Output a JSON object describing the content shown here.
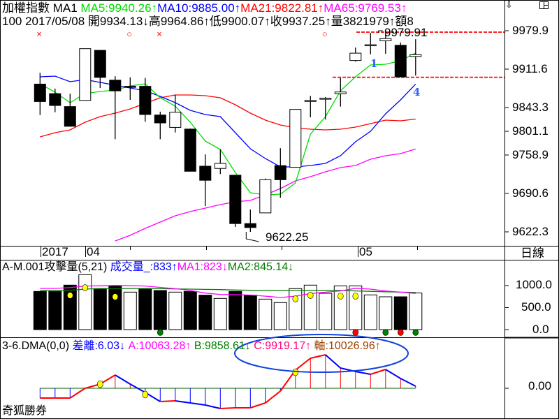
{
  "header": {
    "line1": {
      "name": "加權指數 MA1",
      "ma5": "MA5:9940.26↑",
      "ma10": "MA10:9885.00↑",
      "ma21": "MA21:9822.81↑",
      "ma65": "MA65:9769.53↑"
    },
    "line2": "100 2017/05/08 開9934.13↓高9964.86↑低9900.07↑收9937.25↑量3821979↑額8"
  },
  "colors": {
    "ma5": "#00dd00",
    "ma10": "#0000ff",
    "ma21": "#ff0000",
    "ma65": "#ff00ff",
    "level_line": "#ff2020",
    "vol_ma1": "#ff00ff",
    "vol_ma2": "#008000",
    "dma_up": "#ff0000",
    "dma_down": "#0000ff",
    "annotation": "#3060ff"
  },
  "price_axis": [
    "9979.9",
    "9911.6",
    "9843.3",
    "9801.1",
    "9758.9",
    "9690.6",
    "9622.3"
  ],
  "date_axis": {
    "year": "2017",
    "months": [
      "04",
      "05"
    ],
    "period": "日線"
  },
  "markers": [
    {
      "index": 0,
      "symbol": "×"
    },
    {
      "index": 6,
      "symbol": "○"
    },
    {
      "index": 8,
      "symbol": "×"
    },
    {
      "index": 19,
      "symbol": "○"
    }
  ],
  "price_labels": {
    "high": "9979.91",
    "low": "9622.25"
  },
  "annotations": [
    "1",
    "4"
  ],
  "volume_panel": {
    "title": "A-M.001攻擊量(5,21)",
    "vol": "成交量_:833↑",
    "ma1": "MA1:823↓",
    "ma2": "MA2:845.14↓",
    "axis": [
      "1000.0",
      "500.0",
      "0.0"
    ]
  },
  "dma_panel": {
    "title": "3-6.DMA(0,0)",
    "diff": "差離:6.03↓",
    "a": "A:10063.28↑",
    "b": "B:9858.61↓",
    "c": "C:9919.17↑",
    "axis_val": "軸:10026.96↑",
    "axis": [
      "0.00"
    ]
  },
  "footer_brand": "奇狐勝券",
  "chart_data": {
    "type": "candlestick",
    "price_range": [
      9622.3,
      9979.9
    ],
    "candles": [
      [
        9885,
        9905,
        9830,
        9854
      ],
      [
        9868,
        9877,
        9835,
        9847
      ],
      [
        9845,
        9868,
        9810,
        9810
      ],
      [
        9856,
        9948,
        9856,
        9948
      ],
      [
        9945,
        9945,
        9878,
        9897
      ],
      [
        9892,
        9899,
        9787,
        9873
      ],
      [
        9881,
        9897,
        9857,
        9880
      ],
      [
        9881,
        9896,
        9818,
        9831
      ],
      [
        9830,
        9836,
        9787,
        9816
      ],
      [
        9808,
        9866,
        9799,
        9835
      ],
      [
        9805,
        9806,
        9730,
        9730
      ],
      [
        9739,
        9760,
        9668,
        9714
      ],
      [
        9735,
        9769,
        9725,
        9744
      ],
      [
        9723,
        9723,
        9631,
        9637
      ],
      [
        9637,
        9662,
        9622.25,
        9630
      ],
      [
        9656,
        9717,
        9656,
        9715
      ],
      [
        9740,
        9771,
        9683,
        9715
      ],
      [
        9737,
        9840,
        9737,
        9840
      ],
      [
        9856,
        9864,
        9826,
        9856
      ],
      [
        9859,
        9862,
        9822,
        9860
      ],
      [
        9868,
        9896,
        9845,
        9871
      ],
      [
        9927,
        9950,
        9925,
        9940
      ],
      [
        9955,
        9976,
        9938,
        9955
      ],
      [
        9962,
        9979.91,
        9939,
        9966
      ],
      [
        9954,
        9959,
        9898,
        9898
      ],
      [
        9934.13,
        9964.86,
        9900.07,
        9937.25
      ]
    ],
    "candle_fields": [
      "open",
      "high",
      "low",
      "close"
    ],
    "ma5": [
      9885.5,
      9870.6,
      9852,
      9868.1,
      9871.9,
      9874.4,
      9881.8,
      9885.5,
      9860.7,
      9845.8,
      9817.2,
      9783.7,
      9768.8,
      9727.8,
      9691.8,
      9688.1,
      9689.3,
      9709.2,
      9796.1,
      9827.2,
      9873.1,
      9897.9,
      9919.1,
      9920.3,
      9926.5,
      9940.26
    ],
    "ma10": [
      9897.9,
      9899.2,
      9889.3,
      9893,
      9888,
      9883,
      9878.1,
      9873.1,
      9863.2,
      9852,
      9838.3,
      9830.9,
      9827.2,
      9798.6,
      9770.1,
      9752.7,
      9737.8,
      9737.8,
      9740.3,
      9744,
      9757.6,
      9782.5,
      9801.1,
      9832.1,
      9857,
      9885.0
    ],
    "ma21": [
      9791.2,
      9798.6,
      9803.6,
      9817.2,
      9827.2,
      9833.4,
      9840.8,
      9850.8,
      9860.7,
      9865.7,
      9865.7,
      9864.4,
      9860.7,
      9848.3,
      9833.4,
      9821,
      9812.3,
      9807.3,
      9804.8,
      9803.6,
      9804.8,
      9808.5,
      9814.8,
      9821,
      9819.7,
      9822.81
    ],
    "ma65": [
      null,
      null,
      null,
      null,
      null,
      9606.2,
      9616.1,
      9628.5,
      9639.7,
      9650.9,
      9658.3,
      9664.5,
      9670.7,
      9675.7,
      9678.2,
      9688.1,
      9699.3,
      9712.9,
      9720.4,
      9729.1,
      9736.5,
      9740.3,
      9751.4,
      9757.6,
      9761.4,
      9769.53
    ],
    "levels": [
      9979.91,
      9897
    ],
    "volume": {
      "range": [
        0,
        1250
      ],
      "values": [
        868,
        868,
        1011,
        1249,
        932,
        984,
        852,
        932,
        889,
        852,
        868,
        783,
        709,
        868,
        783,
        693,
        614,
        932,
        1011,
        825,
        995,
        995,
        789,
        746,
        746,
        833
      ],
      "filled": [
        1,
        1,
        1,
        0,
        1,
        1,
        0,
        1,
        1,
        0,
        1,
        1,
        0,
        1,
        1,
        0,
        0,
        0,
        0,
        0,
        0,
        0,
        0,
        0,
        1,
        0
      ],
      "ma1": [
        937,
        937,
        955,
        990,
        995,
        1005,
        1000,
        990,
        960,
        930,
        890,
        830,
        800,
        795,
        785,
        760,
        730,
        760,
        820,
        850,
        880,
        940,
        920,
        880,
        850,
        823
      ],
      "ma2": [
        889,
        889,
        895,
        920,
        935,
        935,
        935,
        935,
        930,
        925,
        920,
        915,
        910,
        900,
        895,
        895,
        895,
        895,
        895,
        895,
        890,
        880,
        870,
        860,
        850,
        845.14
      ],
      "yellow_dots": [
        [
          2,
          778
        ],
        [
          3,
          952
        ],
        [
          5,
          746
        ],
        [
          17,
          698
        ],
        [
          18,
          778
        ],
        [
          20,
          762
        ],
        [
          21,
          762
        ]
      ],
      "signal_dots": [
        [
          8,
          "green"
        ],
        [
          21,
          "red"
        ],
        [
          23,
          "green"
        ],
        [
          24,
          "red"
        ],
        [
          25,
          "green"
        ]
      ]
    },
    "dma": {
      "values": [
        -28,
        -28,
        -28,
        0,
        12,
        38,
        12,
        -12,
        -38,
        -36,
        -42,
        -48,
        -58,
        -56,
        -56,
        -42,
        -8,
        52,
        86,
        96,
        58,
        48,
        40,
        54,
        28,
        6.03
      ],
      "yellow_dots": [
        [
          4,
          12
        ],
        [
          7,
          -18
        ],
        [
          17,
          46
        ]
      ]
    }
  }
}
